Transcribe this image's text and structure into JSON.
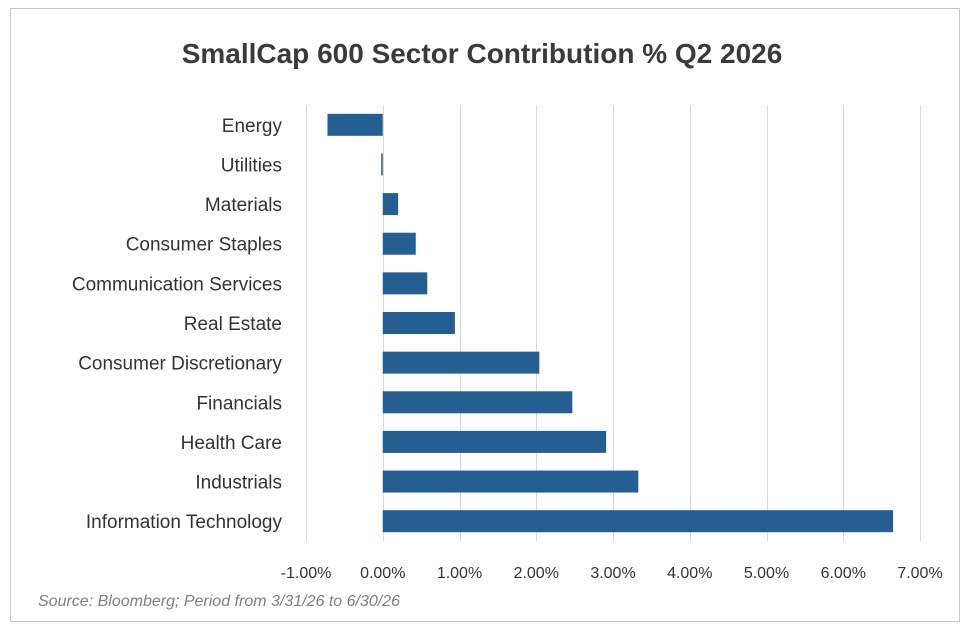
{
  "colors": {
    "bar": "#255e91",
    "grid": "#d9d9d9",
    "axis_text": "#333333",
    "title": "#3a3a3a",
    "source": "#7f7f7f"
  },
  "chart_data": {
    "type": "bar",
    "orientation": "horizontal",
    "title": "SmallCap 600 Sector Contribution % Q2 2026",
    "xlabel": "",
    "ylabel": "",
    "categories": [
      "Energy",
      "Utilities",
      "Materials",
      "Consumer Staples",
      "Communication Services",
      "Real Estate",
      "Consumer Discretionary",
      "Financials",
      "Health Care",
      "Industrials",
      "Information Technology"
    ],
    "values": [
      -0.72,
      -0.02,
      0.2,
      0.43,
      0.58,
      0.94,
      2.04,
      2.47,
      2.91,
      3.33,
      6.65
    ],
    "xlim": [
      -1.0,
      7.0
    ],
    "x_ticks": [
      -1,
      0,
      1,
      2,
      3,
      4,
      5,
      6,
      7
    ],
    "x_tick_labels": [
      "-1.00%",
      "0.00%",
      "1.00%",
      "2.00%",
      "3.00%",
      "4.00%",
      "5.00%",
      "6.00%",
      "7.00%"
    ],
    "grid": "vertical",
    "legend": "none",
    "source": "Source: Bloomberg; Period from 3/31/26 to 6/30/26"
  }
}
